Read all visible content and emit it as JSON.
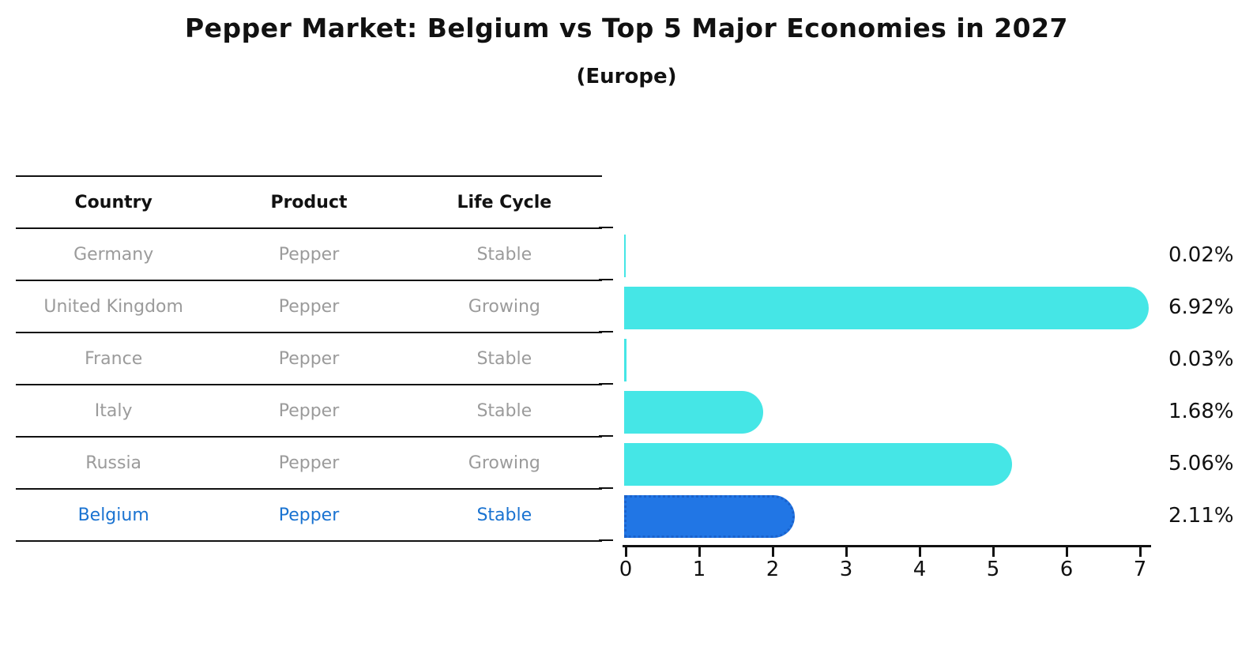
{
  "figure": {
    "title": "Pepper Market: Belgium vs Top 5 Major Economies in 2027",
    "subtitle": "(Europe)"
  },
  "table": {
    "headers": [
      "Country",
      "Product",
      "Life Cycle"
    ],
    "rows": [
      {
        "country": "Germany",
        "product": "Pepper",
        "life_cycle": "Stable",
        "highlight": false
      },
      {
        "country": "United Kingdom",
        "product": "Pepper",
        "life_cycle": "Growing",
        "highlight": false
      },
      {
        "country": "France",
        "product": "Pepper",
        "life_cycle": "Stable",
        "highlight": false
      },
      {
        "country": "Italy",
        "product": "Pepper",
        "life_cycle": "Stable",
        "highlight": false
      },
      {
        "country": "Russia",
        "product": "Pepper",
        "life_cycle": "Growing",
        "highlight": false
      },
      {
        "country": "Belgium",
        "product": "Pepper",
        "life_cycle": "Stable",
        "highlight": true
      }
    ]
  },
  "chart_data": {
    "type": "bar",
    "orientation": "horizontal",
    "title": "Pepper Market: Belgium vs Top 5 Major Economies in 2027",
    "subtitle": "(Europe)",
    "categories": [
      "Germany",
      "United Kingdom",
      "France",
      "Italy",
      "Russia",
      "Belgium"
    ],
    "values": [
      0.02,
      6.92,
      0.03,
      1.68,
      5.06,
      2.11
    ],
    "value_labels": [
      "0.02%",
      "6.92%",
      "0.03%",
      "1.68%",
      "5.06%",
      "2.11%"
    ],
    "x_ticks": [
      "0",
      "1",
      "2",
      "3",
      "4",
      "5",
      "6",
      "7"
    ],
    "xlim": [
      0,
      7.2
    ],
    "grid": false,
    "legend": "none",
    "highlight_index": 5,
    "colors": {
      "bar": "#45e6e6",
      "highlight_bar": "#2176e5",
      "highlight_border": "#1a62cc",
      "highlight_text": "#1a73d1",
      "table_text": "#9b9b9b",
      "header_text": "#111111",
      "axis": "#111111",
      "background": "#ffffff"
    }
  }
}
